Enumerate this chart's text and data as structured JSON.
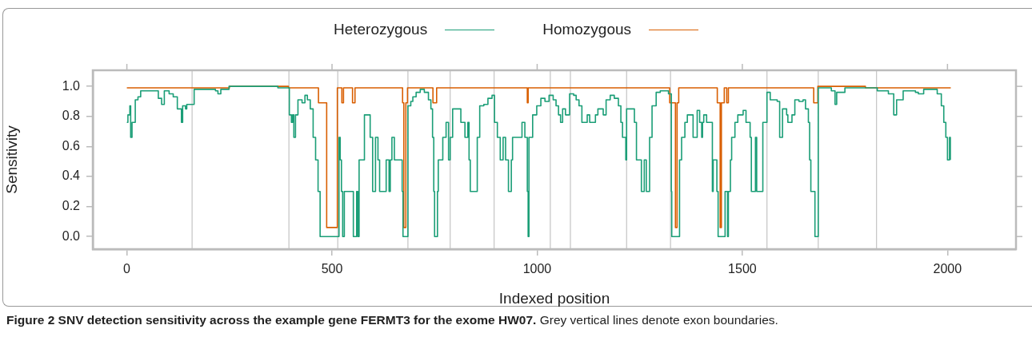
{
  "chart_data": {
    "type": "step",
    "title": "Figure 2 SNV detection sensitivity across the example gene FERMT3 for the exome HW07.",
    "annotations": [
      "Grey vertical lines denote exon boundaries."
    ],
    "xlabel": "Indexed position",
    "ylabel": "Sensitivity",
    "xlim": [
      -83,
      2167
    ],
    "ylim": [
      -0.084,
      1.107
    ],
    "xticks": [
      0,
      500,
      1000,
      1500,
      2000
    ],
    "yticks": [
      {
        "value": 0,
        "label": "0.0"
      },
      {
        "value": 0.2,
        "label": "0.2"
      },
      {
        "value": 0.4,
        "label": "0.4"
      },
      {
        "value": 0.6,
        "label": "0.6"
      },
      {
        "value": 0.8,
        "label": "0.8"
      },
      {
        "value": 1,
        "label": "1.0"
      }
    ],
    "grid": false,
    "legend": "top",
    "line_style": "solid",
    "marker": "none",
    "ref_lines": [
      {
        "axis": "x",
        "value": 159,
        "color": "#c8c8c8"
      },
      {
        "axis": "x",
        "value": 395,
        "color": "#c8c8c8"
      },
      {
        "axis": "x",
        "value": 514,
        "color": "#c8c8c8"
      },
      {
        "axis": "x",
        "value": 685,
        "color": "#c8c8c8"
      },
      {
        "axis": "x",
        "value": 788,
        "color": "#c8c8c8"
      },
      {
        "axis": "x",
        "value": 895,
        "color": "#c8c8c8"
      },
      {
        "axis": "x",
        "value": 1032,
        "color": "#c8c8c8"
      },
      {
        "axis": "x",
        "value": 1081,
        "color": "#c8c8c8"
      },
      {
        "axis": "x",
        "value": 1218,
        "color": "#c8c8c8"
      },
      {
        "axis": "x",
        "value": 1325,
        "color": "#c8c8c8"
      },
      {
        "axis": "x",
        "value": 1560,
        "color": "#c8c8c8"
      },
      {
        "axis": "x",
        "value": 1685,
        "color": "#c8c8c8"
      },
      {
        "axis": "x",
        "value": 1827,
        "color": "#c8c8c8"
      }
    ],
    "series": [
      {
        "name": "Heterozygous",
        "color": "#1b9e77",
        "x": [
          0,
          2.6,
          7.3,
          9.3,
          12.6,
          20.5,
          27.1,
          33.7,
          76.7,
          84.7,
          91.3,
          103,
          113,
          123,
          133,
          136,
          143,
          146,
          164,
          216,
          222,
          229,
          249,
          368,
          396,
          401,
          404,
          407,
          411,
          417,
          427,
          434,
          440,
          447,
          454,
          460,
          466,
          471,
          517,
          520,
          523,
          526,
          530,
          552,
          560,
          563,
          566,
          579,
          593,
          599,
          606,
          612,
          616,
          632,
          639,
          642,
          646,
          652,
          671,
          673,
          685,
          692,
          697,
          705,
          715,
          725,
          735,
          741,
          745,
          748,
          750,
          757,
          759,
          770,
          778,
          784,
          788,
          794,
          814,
          824,
          831,
          834,
          837,
          854,
          860,
          870,
          880,
          890,
          896,
          903,
          910,
          917,
          923,
          930,
          937,
          940,
          963,
          970,
          976,
          978,
          980,
          989,
          999,
          1009,
          1019,
          1029,
          1039,
          1046,
          1052,
          1057,
          1062,
          1069,
          1079,
          1089,
          1095,
          1102,
          1109,
          1122,
          1128,
          1142,
          1148,
          1161,
          1168,
          1178,
          1188,
          1198,
          1204,
          1208,
          1216,
          1218,
          1237,
          1242,
          1254,
          1261,
          1266,
          1274,
          1280,
          1290,
          1300,
          1320,
          1327,
          1328,
          1347,
          1352,
          1360,
          1366,
          1380,
          1390,
          1396,
          1401,
          1403,
          1406,
          1413,
          1427,
          1429,
          1438,
          1441,
          1458,
          1464,
          1466,
          1471,
          1474,
          1482,
          1489,
          1502,
          1509,
          1519,
          1522,
          1532,
          1535,
          1550,
          1560,
          1568,
          1585,
          1591,
          1598,
          1608,
          1611,
          1621,
          1628,
          1638,
          1648,
          1654,
          1661,
          1664,
          1667,
          1677,
          1685,
          1717,
          1726,
          1730,
          1750,
          1829,
          1856,
          1869,
          1876,
          1892,
          1922,
          1929,
          1942,
          1975,
          1985,
          1991,
          1996,
          2000,
          2005,
          2007
        ],
        "values": [
          0.76,
          0.81,
          0.87,
          0.66,
          0.76,
          0.91,
          0.93,
          0.97,
          0.92,
          0.88,
          0.97,
          0.95,
          0.93,
          0.85,
          0.76,
          0.87,
          0.85,
          0.88,
          0.98,
          0.97,
          0.95,
          0.98,
          1.0,
          0.99,
          0.81,
          0.76,
          0.81,
          0.66,
          0.81,
          0.91,
          0.89,
          0.94,
          0.91,
          0.85,
          0.66,
          0.51,
          0.3,
          0,
          0.66,
          0.51,
          0.3,
          0,
          0.3,
          0,
          0.3,
          0,
          0.51,
          0.81,
          0.66,
          0.3,
          0.66,
          0.51,
          0.3,
          0.51,
          0.3,
          0.51,
          0.66,
          0.51,
          0.3,
          0,
          0.87,
          0.9,
          0.93,
          0.96,
          0.98,
          0.96,
          0.91,
          0.85,
          0.66,
          0.3,
          0,
          0.3,
          0.51,
          0.66,
          0.76,
          0.51,
          0.66,
          0.85,
          0.76,
          0.66,
          0.76,
          0.51,
          0.3,
          0.66,
          0.87,
          0.88,
          0.92,
          0.94,
          0.76,
          0.66,
          0.51,
          0.66,
          0.51,
          0.3,
          0.51,
          0.66,
          0.76,
          0.66,
          0.3,
          0,
          0.66,
          0.81,
          0.87,
          0.92,
          0.9,
          0.94,
          0.91,
          0.87,
          0.81,
          0.76,
          0.85,
          0.81,
          0.95,
          0.94,
          0.91,
          0.87,
          0.76,
          0.81,
          0.76,
          0.81,
          0.85,
          0.81,
          0.91,
          0.94,
          0.92,
          0.87,
          0.76,
          0.66,
          0.51,
          0.85,
          0.76,
          0.51,
          0.3,
          0.51,
          0.3,
          0.66,
          0.87,
          0.96,
          0.97,
          0.95,
          0.3,
          0,
          0.51,
          0.66,
          0.76,
          0.81,
          0.66,
          0.84,
          0.76,
          0.66,
          0.76,
          0.81,
          0.76,
          0.3,
          0.51,
          0.3,
          0,
          0.3,
          0,
          0.3,
          0.51,
          0.66,
          0.76,
          0.81,
          0.84,
          0.76,
          0.66,
          0.3,
          0.66,
          0.3,
          0.76,
          0.96,
          0.91,
          0.9,
          0.66,
          0.85,
          0.81,
          0.76,
          0.81,
          0.91,
          0.9,
          0.91,
          0.85,
          0.76,
          0.51,
          0.3,
          0,
          0.99,
          0.97,
          0.88,
          0.96,
          0.99,
          0.97,
          0.95,
          0.81,
          0.91,
          0.97,
          0.96,
          0.95,
          0.98,
          0.95,
          0.87,
          0.76,
          0.66,
          0.51,
          0.66,
          0.51
        ]
      },
      {
        "name": "Homozygous",
        "color": "#d95f02",
        "x": [
          0,
          150,
          250,
          394,
          467,
          487,
          513,
          524,
          528,
          550,
          556,
          672,
          675,
          680,
          684,
          746,
          755,
          976,
          978,
          1323,
          1337,
          1341,
          1345,
          1439,
          1446,
          1449,
          1456,
          1462,
          1466,
          1674,
          1684,
          1800,
          2008
        ],
        "values": [
          0.99,
          0.99,
          1.0,
          0.99,
          0.89,
          0.06,
          0.99,
          0.89,
          0.99,
          0.89,
          0.99,
          0.89,
          0.06,
          0.89,
          0.99,
          0.89,
          0.99,
          0.89,
          0.99,
          0.89,
          0.06,
          0.89,
          0.99,
          0.89,
          0.06,
          0.89,
          0.99,
          0.89,
          0.99,
          0.89,
          1.0,
          0.99,
          0.99
        ]
      }
    ]
  }
}
